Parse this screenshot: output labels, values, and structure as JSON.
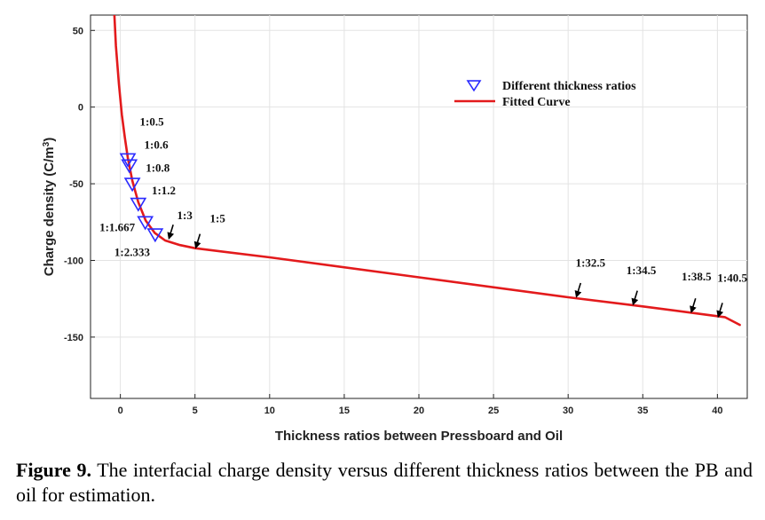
{
  "chart_data": {
    "type": "line",
    "title": "",
    "xlabel": "Thickness ratios between Pressboard and Oil",
    "ylabel": "Charge density (C/m³)",
    "xlim": [
      -2,
      42
    ],
    "ylim": [
      -190,
      60
    ],
    "xticks": [
      0,
      5,
      10,
      15,
      20,
      25,
      30,
      35,
      40
    ],
    "yticks": [
      50,
      0,
      -50,
      -100,
      -150
    ],
    "grid": true,
    "legend": {
      "location": "top-right",
      "entries": [
        {
          "label": "Different thickness ratios",
          "marker": "triangle-down",
          "color": "#2a2aff"
        },
        {
          "label": "Fitted Curve",
          "marker": "line",
          "color": "#e31a1c"
        }
      ]
    },
    "series": [
      {
        "name": "Different thickness ratios",
        "kind": "scatter",
        "color": "#2a2aff",
        "points": [
          {
            "x": 0.5,
            "y": -34
          },
          {
            "x": 0.6,
            "y": -38
          },
          {
            "x": 0.8,
            "y": -50
          },
          {
            "x": 1.2,
            "y": -63
          },
          {
            "x": 1.667,
            "y": -75
          },
          {
            "x": 2.333,
            "y": -83
          }
        ]
      },
      {
        "name": "Fitted Curve",
        "kind": "line",
        "color": "#e31a1c",
        "points": [
          {
            "x": -0.4,
            "y": 60
          },
          {
            "x": -0.3,
            "y": 40
          },
          {
            "x": -0.1,
            "y": 15
          },
          {
            "x": 0.1,
            "y": -5
          },
          {
            "x": 0.3,
            "y": -20
          },
          {
            "x": 0.5,
            "y": -33
          },
          {
            "x": 0.8,
            "y": -48
          },
          {
            "x": 1.2,
            "y": -62
          },
          {
            "x": 1.7,
            "y": -74
          },
          {
            "x": 2.3,
            "y": -82
          },
          {
            "x": 3.0,
            "y": -87
          },
          {
            "x": 4.0,
            "y": -90
          },
          {
            "x": 5.0,
            "y": -92
          },
          {
            "x": 10,
            "y": -98
          },
          {
            "x": 20,
            "y": -111
          },
          {
            "x": 30,
            "y": -124
          },
          {
            "x": 35,
            "y": -130
          },
          {
            "x": 40.5,
            "y": -137
          },
          {
            "x": 41.5,
            "y": -142
          }
        ]
      }
    ],
    "annotations": [
      {
        "text": "1:0.5",
        "x": 1.3,
        "y": -12,
        "arrow": false
      },
      {
        "text": "1:0.6",
        "x": 1.6,
        "y": -27,
        "arrow": false
      },
      {
        "text": "1:0.8",
        "x": 1.7,
        "y": -42,
        "arrow": false
      },
      {
        "text": "1:1.2",
        "x": 2.1,
        "y": -57,
        "arrow": false
      },
      {
        "text": "1:1.667",
        "x": -1.4,
        "y": -81,
        "arrow": false
      },
      {
        "text": "1:2.333",
        "x": -0.4,
        "y": -97,
        "arrow": false
      },
      {
        "text": "1:3",
        "x": 3.8,
        "y": -73,
        "arrow": true,
        "ax": 3.3,
        "ay": -86
      },
      {
        "text": "1:5",
        "x": 6.0,
        "y": -75,
        "arrow": true,
        "ax": 5.1,
        "ay": -92
      },
      {
        "text": "1:32.5",
        "x": 30.5,
        "y": -104,
        "arrow": true,
        "ax": 30.6,
        "ay": -124
      },
      {
        "text": "1:34.5",
        "x": 33.9,
        "y": -109,
        "arrow": true,
        "ax": 34.4,
        "ay": -129
      },
      {
        "text": "1:38.5",
        "x": 37.6,
        "y": -113,
        "arrow": true,
        "ax": 38.3,
        "ay": -134
      },
      {
        "text": "1:40.5",
        "x": 40.0,
        "y": -114,
        "arrow": true,
        "ax": 40.1,
        "ay": -137
      }
    ]
  },
  "caption": {
    "figure_label": "Figure 9.",
    "text": " The interfacial charge density versus different thickness ratios between the PB and oil for estimation."
  }
}
